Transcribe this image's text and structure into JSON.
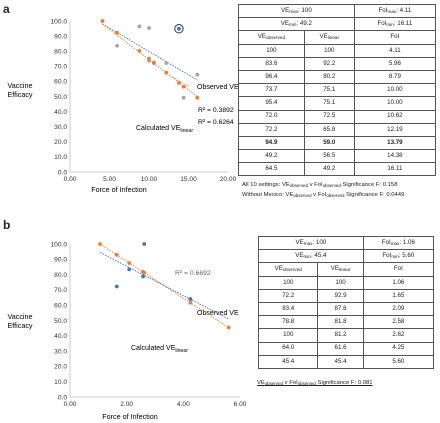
{
  "colors": {
    "orange": "#ED7D31",
    "blue": "#4472C4",
    "gray": "#A5A5A5",
    "circle": "#1F3864"
  },
  "panels": {
    "a": {
      "letter": "a",
      "ylabel": [
        "Vaccine",
        "Efficacy"
      ],
      "xlabel": "Force of Infection",
      "xticks": [
        "0.00",
        "5.00",
        "10.00",
        "15.00",
        "20.00"
      ],
      "yticks": [
        "0.0",
        "10.0",
        "20.0",
        "30.0",
        "40.0",
        "50.0",
        "60.0",
        "70.0",
        "80.0",
        "90.0",
        "100.0"
      ],
      "annot_observed": "Observed VE",
      "annot_calc": "Calculated VE",
      "annot_calc_sub": "linear",
      "r2_gray": "R² = 0.3892",
      "r2_orange": "R² = 0.6264",
      "table": {
        "h1_ve": "VE",
        "h1_ve_sub": "max",
        "h1_ve_val": ": 100",
        "h1_foi": "FoI",
        "h1_foi_sub": "max",
        "h1_foi_val": ": 4.11",
        "h2_ve": "VE",
        "h2_ve_sub": "min",
        "h2_ve_val": ": 49.2",
        "h2_foi": "FoI",
        "h2_foi_sub": "min",
        "h2_foi_val": ": 16.11",
        "c1": "VE",
        "c1_sub": "observed",
        "c2": "VE",
        "c2_sub": "linear",
        "c3": "FoI",
        "rows": [
          [
            "100",
            "100",
            "4.11"
          ],
          [
            "83.6",
            "92.2",
            "5.96"
          ],
          [
            "96.4",
            "80.2",
            "8.79"
          ],
          [
            "73.7",
            "75.1",
            "10.00"
          ],
          [
            "95.4",
            "75.1",
            "10.00"
          ],
          [
            "72.0",
            "72.5",
            "10.62"
          ],
          [
            "72.2",
            "65.8",
            "12.19"
          ],
          [
            "94.9",
            "59.0",
            "13.79"
          ],
          [
            "49.2",
            "56.5",
            "14.38"
          ],
          [
            "64.5",
            "49.2",
            "16.11"
          ]
        ]
      },
      "note1_prefix": "All 10 settings: VE",
      "note1_sub1": "observed",
      "note1_mid": " v FoI",
      "note1_sub2": "observed",
      "note1_suffix": " Significance F: 0.158",
      "note2_prefix": "Without Mexico: VE",
      "note2_sub1": "observed",
      "note2_mid": " v FoI",
      "note2_sub2": "observed",
      "note2_suffix": " Significance F: 0.0449"
    },
    "b": {
      "letter": "b",
      "ylabel": [
        "Vaccine",
        "Efficacy"
      ],
      "xlabel": "Force of Infection",
      "xticks": [
        "0.00",
        "2.00",
        "4.00",
        "6.00"
      ],
      "yticks": [
        "0.0",
        "10.0",
        "20.0",
        "30.0",
        "40.0",
        "50.0",
        "60.0",
        "70.0",
        "80.0",
        "90.0",
        "100.0"
      ],
      "annot_observed": "Observed VE",
      "annot_calc": "Calculated VE",
      "annot_calc_sub": "linear",
      "r2_blue": "R² = 0.6692",
      "table": {
        "h1_ve": "VE",
        "h1_ve_sub": "max",
        "h1_ve_val": ": 100",
        "h1_foi": "FoI",
        "h1_foi_sub": "max",
        "h1_foi_val": ": 1.06",
        "h2_ve": "VE",
        "h2_ve_sub": "min",
        "h2_ve_val": ": 45.4",
        "h2_foi": "FoI",
        "h2_foi_sub": "min",
        "h2_foi_val": ": 5.60",
        "c1": "VE",
        "c1_sub": "observed",
        "c2": "VE",
        "c2_sub": "linear",
        "c3": "FoI",
        "rows": [
          [
            "100",
            "100",
            "1.06"
          ],
          [
            "72.2",
            "92.9",
            "1.65"
          ],
          [
            "83.4",
            "87.6",
            "2.09"
          ],
          [
            "78.8",
            "81.8",
            "2.58"
          ],
          [
            "100",
            "81.2",
            "2.62"
          ],
          [
            "64.0",
            "61.6",
            "4.25"
          ],
          [
            "45.4",
            "45.4",
            "5.60"
          ]
        ]
      },
      "note_prefix": "VE",
      "note_sub1": "observed",
      "note_mid": " v FoI",
      "note_sub2": "observed",
      "note_suffix": " Significance F: 0.081"
    }
  },
  "chart_data": [
    {
      "type": "scatter",
      "xlabel": "Force of Infection",
      "ylabel": "Vaccine Efficacy",
      "xlim": [
        0,
        20
      ],
      "ylim": [
        0,
        100
      ],
      "grid": false,
      "series": [
        {
          "name": "Observed VE",
          "color": "#A5A5A5",
          "x": [
            4.11,
            5.96,
            8.79,
            10.0,
            10.0,
            10.62,
            12.19,
            14.38,
            16.11
          ],
          "y": [
            100,
            83.6,
            96.4,
            73.7,
            95.4,
            72.0,
            72.2,
            49.2,
            64.5
          ]
        },
        {
          "name": "Calculated VE linear",
          "color": "#ED7D31",
          "x": [
            4.11,
            5.96,
            8.79,
            10.0,
            10.62,
            12.19,
            13.79,
            14.38,
            16.11
          ],
          "y": [
            100,
            92.2,
            80.2,
            75.1,
            72.5,
            65.8,
            59.0,
            56.5,
            49.2
          ]
        }
      ],
      "highlight": {
        "x": 13.79,
        "y": 94.9
      },
      "trendlines": [
        {
          "color": "#4472C4",
          "x": [
            4.11,
            16.11
          ],
          "y": [
            98.1,
            60.9
          ]
        },
        {
          "color": "#A5A5A5",
          "x": [
            13.0,
            15.0
          ],
          "y": [
            63.0,
            56.8
          ]
        },
        {
          "color": "#ED7D31",
          "x": [
            4.11,
            16.11
          ],
          "y": [
            98.0,
            50.0
          ]
        }
      ]
    },
    {
      "type": "scatter",
      "xlabel": "Force of Infection",
      "ylabel": "Vaccine Efficacy",
      "xlim": [
        0,
        6
      ],
      "ylim": [
        0,
        100
      ],
      "grid": false,
      "series": [
        {
          "name": "Observed VE",
          "color": "#4472C4",
          "x": [
            1.65,
            2.09,
            2.58,
            2.62,
            4.25
          ],
          "y": [
            72.2,
            83.4,
            78.8,
            100,
            64.0
          ]
        },
        {
          "name": "Calculated VE linear",
          "color": "#ED7D31",
          "x": [
            1.06,
            1.65,
            2.09,
            2.58,
            2.62,
            4.25,
            5.6
          ],
          "y": [
            100,
            92.9,
            87.6,
            81.8,
            81.2,
            61.6,
            45.4
          ]
        }
      ],
      "trendlines": [
        {
          "color": "#4472C4",
          "x": [
            1.06,
            5.6
          ],
          "y": [
            94.5,
            51.0
          ]
        },
        {
          "color": "#ED7D31",
          "x": [
            1.06,
            5.6
          ],
          "y": [
            100,
            45.4
          ]
        }
      ]
    }
  ]
}
